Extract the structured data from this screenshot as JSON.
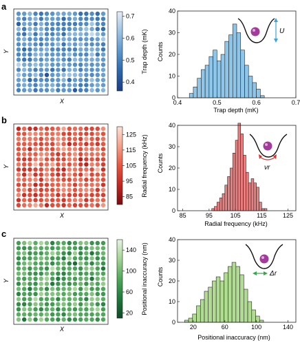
{
  "panels": [
    {
      "letter": "a",
      "map": {
        "xlabel": "X",
        "ylabel": "Y",
        "colorbar_label": "Trap depth (mK)",
        "colorbar_ticks": [
          0.4,
          0.5,
          0.6,
          0.7
        ],
        "colorbar_range": [
          0.36,
          0.72
        ],
        "colormap": [
          "#1c3c87",
          "#2b67ad",
          "#5b97cd",
          "#9cc3e3",
          "#e4eef8"
        ],
        "grid": 16
      },
      "inset": {
        "type": "trap-depth",
        "label": "U"
      }
    },
    {
      "letter": "b",
      "map": {
        "xlabel": "X",
        "ylabel": "Y",
        "colorbar_label": "Radial frequency (kHz)",
        "colorbar_ticks": [
          85,
          95,
          105,
          115,
          125
        ],
        "colorbar_range": [
          80,
          130
        ],
        "colormap": [
          "#7a0c10",
          "#c4261f",
          "#e8553f",
          "#f6a08a",
          "#fde2d6"
        ],
        "grid": 16
      },
      "inset": {
        "type": "radial-frequency",
        "label": "νr"
      }
    },
    {
      "letter": "c",
      "map": {
        "xlabel": "X",
        "ylabel": "Y",
        "colorbar_label": "Positional inaccuracy (nm)",
        "colorbar_ticks": [
          20,
          60,
          100,
          140
        ],
        "colorbar_range": [
          10,
          160
        ],
        "colormap": [
          "#0d4a26",
          "#1f7a3c",
          "#4ea85a",
          "#a3d394",
          "#e6f4e0"
        ],
        "grid": 16
      },
      "inset": {
        "type": "positional-inaccuracy",
        "label": "Δr"
      }
    }
  ],
  "chart_data": [
    {
      "type": "bar",
      "xlabel": "Trap depth (mK)",
      "ylabel": "Counts",
      "xlim": [
        0.4,
        0.7
      ],
      "ylim": [
        0,
        40
      ],
      "xticks": [
        0.4,
        0.5,
        0.6,
        0.7
      ],
      "yticks": [
        0,
        10,
        20,
        30,
        40
      ],
      "bin_start": 0.43,
      "bin_width": 0.01,
      "values": [
        2,
        5,
        9,
        13,
        15,
        19,
        22,
        17,
        20,
        26,
        29,
        34,
        30,
        22,
        15,
        10,
        7,
        4,
        1
      ],
      "color": "#8ec6ea"
    },
    {
      "type": "bar",
      "xlabel": "Radial frequency (kHz)",
      "ylabel": "Counts",
      "xlim": [
        83,
        128
      ],
      "ylim": [
        0,
        40
      ],
      "xticks": [
        85,
        95,
        105,
        115,
        125
      ],
      "yticks": [
        0,
        10,
        20,
        30,
        40
      ],
      "bin_start": 96,
      "bin_width": 1,
      "values": [
        1,
        2,
        4,
        6,
        8,
        12,
        16,
        20,
        27,
        33,
        41,
        36,
        26,
        18,
        13,
        15,
        13,
        11,
        4,
        1,
        1
      ],
      "color": "#ea7f80"
    },
    {
      "type": "bar",
      "xlabel": "Positional inaccuracy (nm)",
      "ylabel": "Counts",
      "xlim": [
        0,
        150
      ],
      "ylim": [
        0,
        40
      ],
      "xticks": [
        20,
        60,
        100,
        140
      ],
      "yticks": [
        0,
        10,
        20,
        30,
        40
      ],
      "bin_start": 9,
      "bin_width": 5,
      "values": [
        1,
        2,
        4,
        8,
        11,
        15,
        17,
        20,
        22,
        20,
        24,
        27,
        29,
        27,
        23,
        16,
        10,
        6,
        3,
        1
      ],
      "color": "#b0dc92"
    }
  ]
}
